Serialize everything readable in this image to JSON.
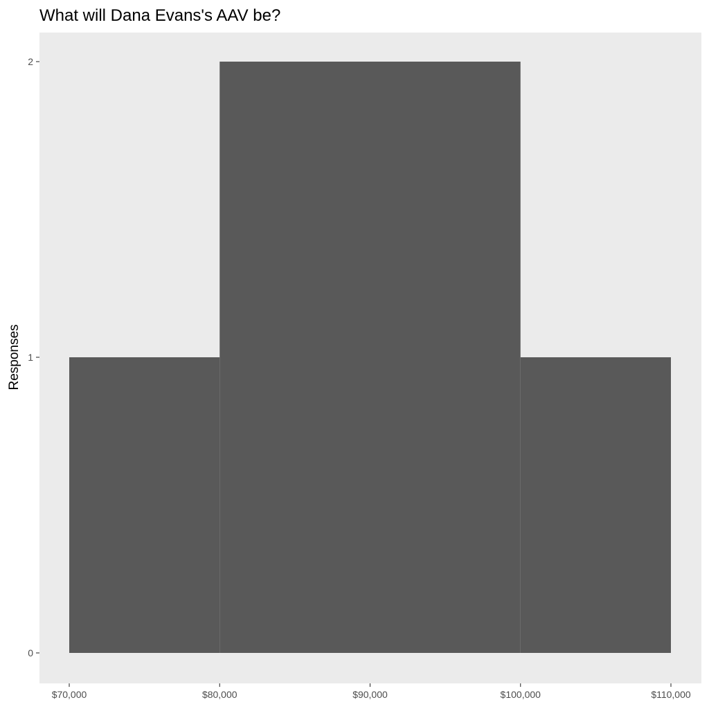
{
  "chart_data": {
    "type": "bar",
    "title": "What will Dana Evans's AAV be?",
    "xlabel": "",
    "ylabel": "Responses",
    "bins": [
      {
        "x_start": 70000,
        "x_end": 80000,
        "count": 1
      },
      {
        "x_start": 80000,
        "x_end": 100000,
        "count": 2
      },
      {
        "x_start": 100000,
        "x_end": 110000,
        "count": 1
      }
    ],
    "xlim": [
      70000,
      110000
    ],
    "ylim": [
      0,
      2
    ],
    "x_ticks": [
      70000,
      80000,
      90000,
      100000,
      110000
    ],
    "x_tick_labels": [
      "$70,000",
      "$80,000",
      "$90,000",
      "$100,000",
      "$110,000"
    ],
    "y_ticks": [
      0,
      1,
      2
    ],
    "y_tick_labels": [
      "0",
      "1",
      "2"
    ],
    "grid": false,
    "legend": "none",
    "colors": {
      "bar_fill": "#595959",
      "panel_background": "#ebebeb",
      "page_background": "#ffffff"
    }
  }
}
